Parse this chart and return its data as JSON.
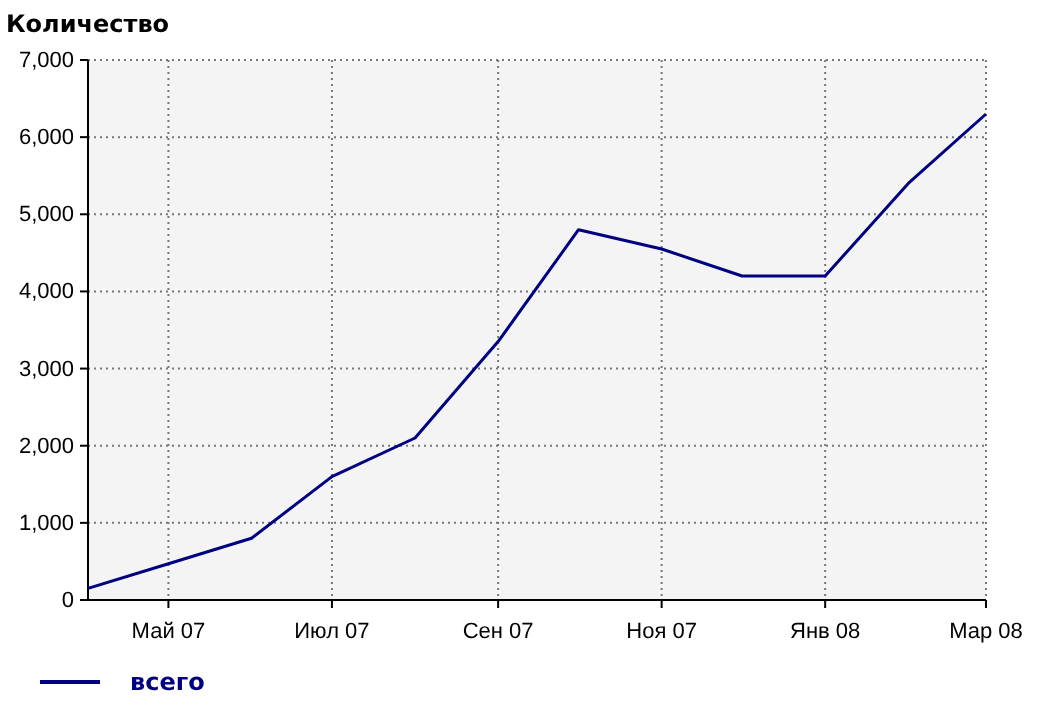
{
  "chart_data": {
    "type": "line",
    "ylabel": "Количество",
    "x": [
      "2007-04",
      "2007-05",
      "2007-06",
      "2007-07",
      "2007-08",
      "2007-09",
      "2007-10",
      "2007-11",
      "2007-12",
      "2008-01",
      "2008-02",
      "2008-03"
    ],
    "series": [
      {
        "name": "всего",
        "color": "#000080",
        "values": [
          150,
          470,
          800,
          1600,
          2100,
          3350,
          4800,
          4550,
          4200,
          4200,
          5400,
          6300
        ]
      }
    ],
    "xlim": [
      "2007-04",
      "2008-03"
    ],
    "xticks": [
      {
        "value": "2007-05",
        "label": "Май 07"
      },
      {
        "value": "2007-07",
        "label": "Июл 07"
      },
      {
        "value": "2007-09",
        "label": "Сен 07"
      },
      {
        "value": "2007-11",
        "label": "Ноя 07"
      },
      {
        "value": "2008-01",
        "label": "Янв 08"
      },
      {
        "value": "2008-03",
        "label": "Мар 08"
      }
    ],
    "ylim": [
      0,
      7000
    ],
    "yticks": [
      {
        "value": 0,
        "label": "0"
      },
      {
        "value": 1000,
        "label": "1,000"
      },
      {
        "value": 2000,
        "label": "2,000"
      },
      {
        "value": 3000,
        "label": "3,000"
      },
      {
        "value": 4000,
        "label": "4,000"
      },
      {
        "value": 5000,
        "label": "5,000"
      },
      {
        "value": 6000,
        "label": "6,000"
      },
      {
        "value": 7000,
        "label": "7,000"
      }
    ],
    "grid": true,
    "legend": "bottom left",
    "marker": "none",
    "line_style": "solid"
  }
}
